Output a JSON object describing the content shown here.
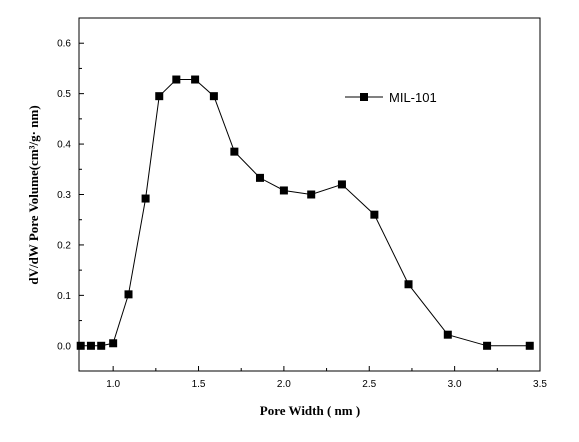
{
  "chart_data": {
    "type": "line",
    "title": "",
    "xlabel": "Pore Width ( nm )",
    "ylabel": "dV/dW Pore Volume(cm³/g· nm)",
    "xlim": [
      0.8,
      3.5
    ],
    "ylim": [
      -0.05,
      0.65
    ],
    "x_ticks": [
      1.0,
      1.5,
      2.0,
      2.5,
      3.0,
      3.5
    ],
    "x_tick_labels": [
      "1.0",
      "1.5",
      "2.0",
      "2.5",
      "3.0",
      "3.5"
    ],
    "y_ticks": [
      0.0,
      0.1,
      0.2,
      0.3,
      0.4,
      0.5,
      0.6
    ],
    "y_tick_labels": [
      "0.0",
      "0.1",
      "0.2",
      "0.3",
      "0.4",
      "0.5",
      "0.6"
    ],
    "grid": false,
    "legend_position": "top-right",
    "series": [
      {
        "name": "MIL-101",
        "marker": "square",
        "color": "#000000",
        "x": [
          0.81,
          0.87,
          0.93,
          1.0,
          1.09,
          1.19,
          1.27,
          1.37,
          1.48,
          1.59,
          1.71,
          1.86,
          2.0,
          2.16,
          2.34,
          2.53,
          2.73,
          2.96,
          3.19,
          3.44
        ],
        "y": [
          0.0,
          0.0,
          0.0,
          0.005,
          0.102,
          0.292,
          0.495,
          0.528,
          0.528,
          0.495,
          0.385,
          0.333,
          0.308,
          0.3,
          0.32,
          0.26,
          0.122,
          0.022,
          0.0,
          0.0
        ]
      }
    ]
  }
}
